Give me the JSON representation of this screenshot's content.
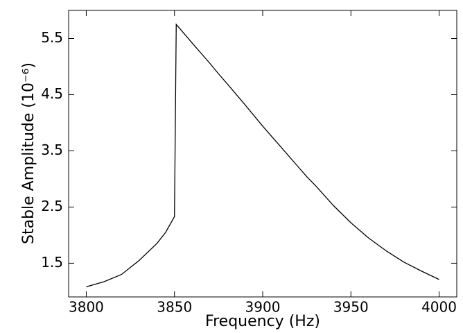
{
  "chart_data": {
    "type": "line",
    "xlabel": "Frequency (Hz)",
    "ylabel": "Stable Amplitude (10⁻⁶)",
    "x": [
      3800,
      3810,
      3820,
      3830,
      3840,
      3845,
      3850,
      3851,
      3860,
      3870,
      3875,
      3880,
      3890,
      3900,
      3910,
      3920,
      3925,
      3930,
      3940,
      3950,
      3960,
      3970,
      3975,
      3980,
      3990,
      4000
    ],
    "series": [
      {
        "name": "Stable Amplitude",
        "color": "#000000",
        "values": [
          1.08,
          1.17,
          1.3,
          1.55,
          1.85,
          2.05,
          2.33,
          5.75,
          5.42,
          5.06,
          4.87,
          4.69,
          4.32,
          3.94,
          3.58,
          3.22,
          3.04,
          2.88,
          2.53,
          2.22,
          1.95,
          1.72,
          1.62,
          1.52,
          1.36,
          1.21
        ]
      }
    ],
    "xlim": [
      3790,
      4010
    ],
    "xticks": [
      3800,
      3850,
      3900,
      3950,
      4000
    ],
    "ylim": [
      0.9,
      6.0
    ],
    "yticks": [
      1.5,
      2.5,
      3.5,
      4.5,
      5.5
    ],
    "grid": false
  }
}
